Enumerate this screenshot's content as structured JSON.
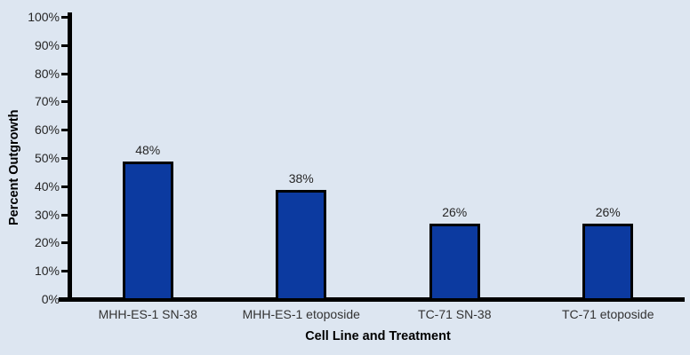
{
  "chart_data": {
    "type": "bar",
    "title": "",
    "xlabel": "Cell Line and Treatment",
    "ylabel": "Percent Outgrowth",
    "categories": [
      "MHH-ES-1 SN-38",
      "MHH-ES-1 etoposide",
      "TC-71 SN-38",
      "TC-71 etoposide"
    ],
    "values": [
      48,
      38,
      26,
      26
    ],
    "value_labels": [
      "48%",
      "38%",
      "26%",
      "26%"
    ],
    "ylim": [
      0,
      100
    ],
    "ytick_step": 10,
    "ytick_labels": [
      "0%",
      "10%",
      "20%",
      "30%",
      "40%",
      "50%",
      "60%",
      "70%",
      "80%",
      "90%",
      "100%"
    ],
    "grid": false,
    "legend": "none",
    "colors": {
      "background": "#dde6f1",
      "bar_fill": "#0c3aa0",
      "bar_border": "#000000",
      "axis": "#000000",
      "tick_text": "#262626",
      "category_text": "#333333",
      "title_text": "#000000"
    }
  }
}
